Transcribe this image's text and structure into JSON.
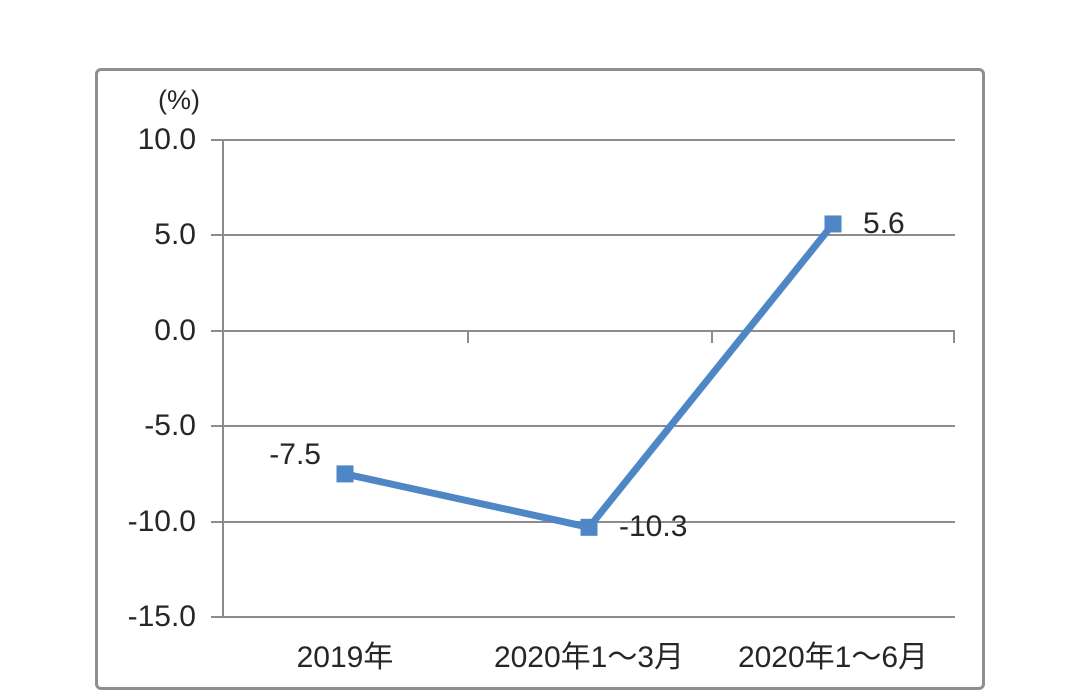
{
  "chart_data": {
    "type": "line",
    "title": "",
    "unit_label": "(%)",
    "categories": [
      "2019年",
      "2020年1～3月",
      "2020年1～6月"
    ],
    "series": [
      {
        "values": [
          -7.5,
          -10.3,
          5.6
        ]
      }
    ],
    "data_labels": [
      "-7.5",
      "-10.3",
      "5.6"
    ],
    "y_tick_labels": [
      "10.0",
      "5.0",
      "0.0",
      "-5.0",
      "-10.0",
      "-15.0"
    ],
    "y_tick_values": [
      10,
      5,
      0,
      -5,
      -10,
      -15
    ],
    "ylim": [
      -15,
      10
    ],
    "grid": true,
    "legend": "none",
    "marker": "square",
    "data_label_placement": [
      "left-above",
      "right",
      "right"
    ],
    "colors": {
      "series": "#4E86C6",
      "grid": "#8C8C8C",
      "axis": "#8C8C8C",
      "text": "#262626",
      "frame": "#8F8F8F",
      "background": "#FFFFFF"
    }
  }
}
